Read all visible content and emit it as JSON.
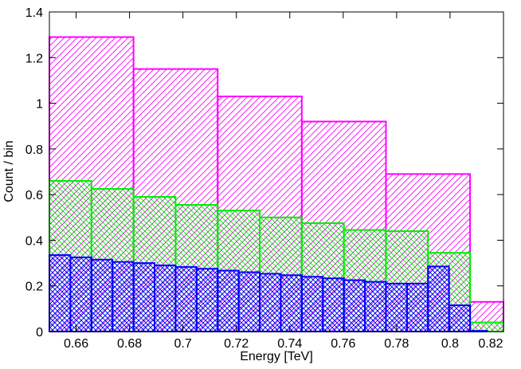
{
  "chart_data": {
    "type": "histogram",
    "xlabel": "Energy [TeV]",
    "ylabel": "Count / bin",
    "xlim": [
      0.65,
      0.82
    ],
    "ylim": [
      0,
      1.4
    ],
    "xticks": [
      0.66,
      0.68,
      0.7,
      0.72,
      0.74,
      0.76,
      0.78,
      0.8,
      0.82
    ],
    "yticks": [
      0,
      0.2,
      0.4,
      0.6,
      0.8,
      1,
      1.2,
      1.4
    ],
    "series": [
      {
        "color": "#ff00ff",
        "hatch": "forward",
        "bins": [
          0.65,
          0.6815,
          0.713,
          0.7445,
          0.776,
          0.8075,
          0.82
        ],
        "values": [
          1.29,
          1.15,
          1.03,
          0.92,
          0.69,
          0.13
        ]
      },
      {
        "color": "#00ee00",
        "hatch": "backward",
        "bins": [
          0.65,
          0.66575,
          0.6815,
          0.69725,
          0.713,
          0.72875,
          0.7445,
          0.76025,
          0.776,
          0.79175,
          0.8075,
          0.82
        ],
        "values": [
          0.66,
          0.625,
          0.59,
          0.555,
          0.53,
          0.5,
          0.475,
          0.445,
          0.44,
          0.345,
          0.04
        ]
      },
      {
        "color": "#0000ff",
        "hatch": "cross",
        "bins": [
          0.65,
          0.657875,
          0.66575,
          0.673625,
          0.6815,
          0.689375,
          0.69725,
          0.705125,
          0.713,
          0.720875,
          0.72875,
          0.736625,
          0.7445,
          0.752375,
          0.76025,
          0.768125,
          0.776,
          0.783875,
          0.79175,
          0.799625,
          0.8075,
          0.8138,
          0.82
        ],
        "values": [
          0.335,
          0.325,
          0.315,
          0.305,
          0.3,
          0.29,
          0.283,
          0.275,
          0.267,
          0.26,
          0.253,
          0.247,
          0.24,
          0.233,
          0.225,
          0.218,
          0.21,
          0.21,
          0.285,
          0.115,
          0.003,
          0
        ]
      }
    ]
  }
}
